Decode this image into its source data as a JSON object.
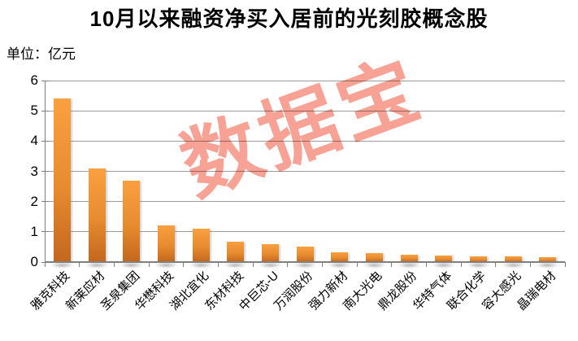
{
  "title": "10月以来融资净买入居前的光刻胶概念股",
  "unit_label": "单位：亿元",
  "watermark_text": "数据宝",
  "chart_data": {
    "type": "bar",
    "title": "10月以来融资净买入居前的光刻胶概念股",
    "subtitle": "单位：亿元",
    "categories": [
      "雅克科技",
      "新莱应材",
      "圣泉集团",
      "华懋科技",
      "湖北宜化",
      "东材科技",
      "中巨芯-U",
      "万润股份",
      "强力新材",
      "南大光电",
      "鼎龙股份",
      "华特气体",
      "联合化学",
      "容大感光",
      "晶瑞电材"
    ],
    "values": [
      5.4,
      3.1,
      2.7,
      1.2,
      1.1,
      0.68,
      0.6,
      0.52,
      0.33,
      0.3,
      0.25,
      0.22,
      0.2,
      0.18,
      0.17
    ],
    "xlabel": "",
    "ylabel": "亿元",
    "ylim": [
      0,
      6
    ],
    "ytick_step": 1,
    "grid": true,
    "legend": false
  },
  "colors": {
    "bar_top": "#F9A040",
    "bar_bottom": "#C2671D",
    "gridline": "#9C9C9C",
    "axis": "#808080",
    "watermark": "#F7A294",
    "text": "#000000",
    "background": "#FFFFFF"
  }
}
